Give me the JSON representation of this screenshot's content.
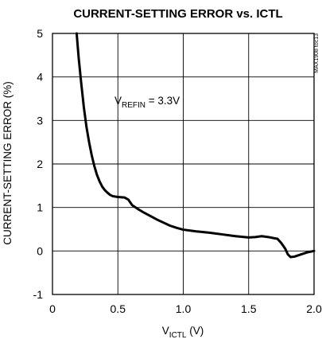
{
  "chart_data": {
    "type": "line",
    "title": "CURRENT-SETTING ERROR vs. ICTL",
    "ylabel": "CURRENT-SETTING ERROR (%)",
    "xlabel": {
      "main": "V",
      "sub": "ICTL",
      "unit": " (V)"
    },
    "xlim": [
      0,
      2.0
    ],
    "ylim": [
      -1,
      5
    ],
    "x_ticks": [
      0,
      0.5,
      1.0,
      1.5,
      2.0
    ],
    "x_tick_labels": [
      "0",
      "0.5",
      "1.0",
      "1.5",
      "2.0"
    ],
    "y_ticks": [
      -1,
      0,
      1,
      2,
      3,
      4,
      5
    ],
    "y_tick_labels": [
      "-1",
      "0",
      "1",
      "2",
      "3",
      "4",
      "5"
    ],
    "grid": true,
    "annotation": {
      "main": "V",
      "sub": "REFIN",
      "rest": " = 3.3V"
    },
    "part_number": "MAX1908 toc13",
    "series": [
      {
        "x": [
          0.185,
          0.2,
          0.22,
          0.24,
          0.26,
          0.28,
          0.3,
          0.32,
          0.34,
          0.36,
          0.38,
          0.4,
          0.42,
          0.44,
          0.46,
          0.48,
          0.5,
          0.55,
          0.58,
          0.61,
          0.65,
          0.7,
          0.75,
          0.8,
          0.85,
          0.9,
          0.95,
          1.0,
          1.1,
          1.2,
          1.3,
          1.4,
          1.5,
          1.55,
          1.6,
          1.65,
          1.7,
          1.72,
          1.75,
          1.78,
          1.8,
          1.82,
          1.85,
          1.9,
          1.95,
          2.0
        ],
        "y": [
          5.0,
          4.45,
          3.85,
          3.3,
          2.85,
          2.5,
          2.2,
          1.95,
          1.75,
          1.6,
          1.48,
          1.4,
          1.34,
          1.29,
          1.26,
          1.25,
          1.24,
          1.23,
          1.18,
          1.05,
          0.97,
          0.88,
          0.8,
          0.72,
          0.65,
          0.58,
          0.53,
          0.49,
          0.45,
          0.42,
          0.38,
          0.34,
          0.31,
          0.32,
          0.34,
          0.32,
          0.29,
          0.28,
          0.18,
          0.05,
          -0.08,
          -0.14,
          -0.13,
          -0.08,
          -0.03,
          0.0
        ]
      }
    ]
  }
}
